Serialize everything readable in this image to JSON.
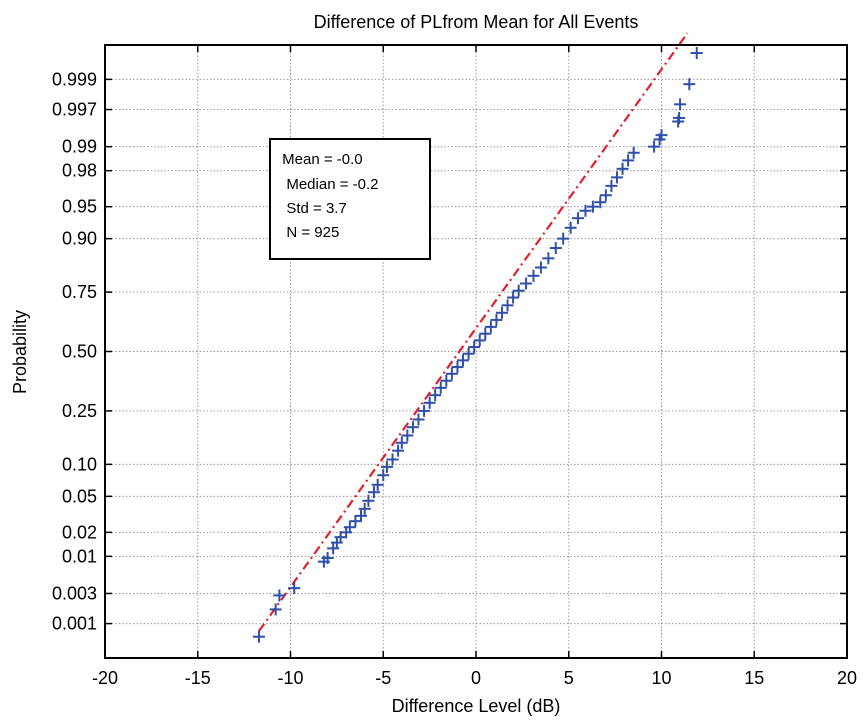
{
  "chart_data": {
    "type": "scatter",
    "title": "Difference of PLfrom Mean for All Events",
    "xlabel": "Difference Level (dB)",
    "ylabel": "Probability",
    "xlim": [
      -20,
      20
    ],
    "x_ticks": [
      -20,
      -15,
      -10,
      -5,
      0,
      5,
      10,
      15,
      20
    ],
    "y_scale": "normal-probability",
    "y_ticks": [
      {
        "p": 0.001,
        "label": "0.001"
      },
      {
        "p": 0.003,
        "label": "0.003"
      },
      {
        "p": 0.01,
        "label": "0.01"
      },
      {
        "p": 0.02,
        "label": "0.02"
      },
      {
        "p": 0.05,
        "label": "0.05"
      },
      {
        "p": 0.1,
        "label": "0.10"
      },
      {
        "p": 0.25,
        "label": "0.25"
      },
      {
        "p": 0.5,
        "label": "0.50"
      },
      {
        "p": 0.75,
        "label": "0.75"
      },
      {
        "p": 0.9,
        "label": "0.90"
      },
      {
        "p": 0.95,
        "label": "0.95"
      },
      {
        "p": 0.98,
        "label": "0.98"
      },
      {
        "p": 0.99,
        "label": "0.99"
      },
      {
        "p": 0.997,
        "label": "0.997"
      },
      {
        "p": 0.999,
        "label": "0.999"
      }
    ],
    "grid": true,
    "series": [
      {
        "marker": "+",
        "color": "#2f4fa8",
        "points": [
          [
            -11.7,
            0.0006
          ],
          [
            -10.8,
            0.0017
          ],
          [
            -10.6,
            0.0028
          ],
          [
            -9.8,
            0.0036
          ],
          [
            -8.2,
            0.0085
          ],
          [
            -8.0,
            0.0095
          ],
          [
            -7.7,
            0.0127
          ],
          [
            -7.5,
            0.015
          ],
          [
            -7.3,
            0.0175
          ],
          [
            -7.0,
            0.02
          ],
          [
            -6.8,
            0.023
          ],
          [
            -6.5,
            0.027
          ],
          [
            -6.2,
            0.031
          ],
          [
            -6.0,
            0.037
          ],
          [
            -5.8,
            0.045
          ],
          [
            -5.5,
            0.055
          ],
          [
            -5.3,
            0.065
          ],
          [
            -5.0,
            0.08
          ],
          [
            -4.8,
            0.095
          ],
          [
            -4.5,
            0.11
          ],
          [
            -4.2,
            0.13
          ],
          [
            -4.0,
            0.15
          ],
          [
            -3.7,
            0.17
          ],
          [
            -3.4,
            0.195
          ],
          [
            -3.1,
            0.22
          ],
          [
            -2.8,
            0.25
          ],
          [
            -2.5,
            0.28
          ],
          [
            -2.2,
            0.31
          ],
          [
            -1.9,
            0.34
          ],
          [
            -1.6,
            0.37
          ],
          [
            -1.3,
            0.4
          ],
          [
            -1.0,
            0.43
          ],
          [
            -0.7,
            0.46
          ],
          [
            -0.4,
            0.49
          ],
          [
            -0.1,
            0.52
          ],
          [
            0.2,
            0.55
          ],
          [
            0.5,
            0.58
          ],
          [
            0.8,
            0.61
          ],
          [
            1.1,
            0.64
          ],
          [
            1.4,
            0.67
          ],
          [
            1.7,
            0.7
          ],
          [
            2.0,
            0.73
          ],
          [
            2.3,
            0.755
          ],
          [
            2.7,
            0.78
          ],
          [
            3.1,
            0.805
          ],
          [
            3.5,
            0.83
          ],
          [
            3.9,
            0.855
          ],
          [
            4.3,
            0.88
          ],
          [
            4.7,
            0.9
          ],
          [
            5.1,
            0.92
          ],
          [
            5.5,
            0.935
          ],
          [
            5.9,
            0.945
          ],
          [
            6.3,
            0.95
          ],
          [
            6.7,
            0.955
          ],
          [
            7.0,
            0.962
          ],
          [
            7.3,
            0.97
          ],
          [
            7.6,
            0.976
          ],
          [
            7.9,
            0.981
          ],
          [
            8.2,
            0.985
          ],
          [
            8.5,
            0.988
          ],
          [
            9.6,
            0.99
          ],
          [
            9.9,
            0.992
          ],
          [
            10.0,
            0.993
          ],
          [
            10.9,
            0.9955
          ],
          [
            10.95,
            0.996
          ],
          [
            11.0,
            0.9975
          ],
          [
            11.5,
            0.9988
          ],
          [
            11.9,
            0.99965
          ]
        ]
      },
      {
        "type": "line",
        "style": "dash-dot",
        "color": "#e0202a",
        "points": [
          [
            -11.7,
            0.00075
          ],
          [
            11.4,
            0.99985
          ]
        ]
      }
    ],
    "annotation": {
      "lines": [
        " Mean = -0.0",
        "  Median = -0.2",
        "  Std = 3.7",
        "  N = 925"
      ]
    }
  }
}
